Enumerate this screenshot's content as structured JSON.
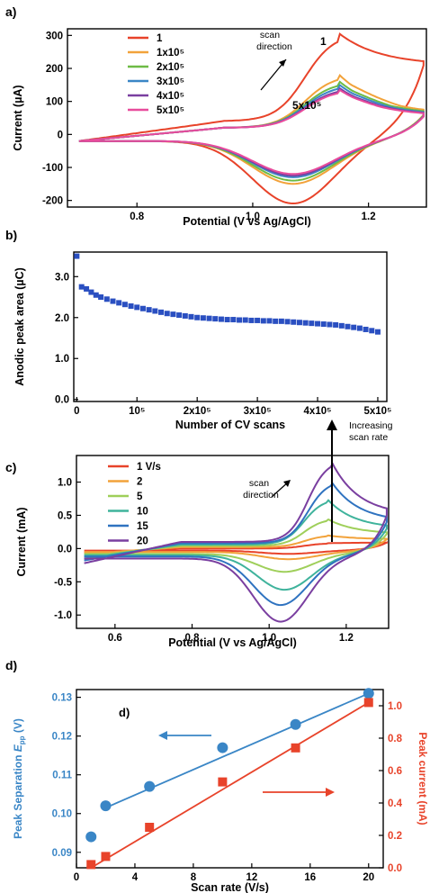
{
  "chart_data": [
    {
      "panel": "a)",
      "type": "line",
      "xlabel": "Potential (V vs Ag/AgCl)",
      "ylabel": "Current (µA)",
      "xlim": [
        0.68,
        1.3
      ],
      "ylim": [
        -220,
        320
      ],
      "xticks": [
        "0.8",
        "1.0",
        "1.2"
      ],
      "xtick_values": [
        0.8,
        1.0,
        1.2
      ],
      "yticks": [
        "-200",
        "-100",
        "0",
        "100",
        "200",
        "300"
      ],
      "ytick_values": [
        -200,
        -100,
        0,
        100,
        200,
        300
      ],
      "legend": {
        "placement": "top-left",
        "entries": [
          "1",
          "1x10⁵",
          "2x10⁵",
          "3x10⁵",
          "4x10⁵",
          "5x10⁵"
        ]
      },
      "annotations": {
        "scan_direction": [
          "scan",
          "direction"
        ],
        "first_scan": "1",
        "last_scan": "5x10⁵"
      },
      "series": [
        {
          "name": "1",
          "color": "#e8432a",
          "anodic_peak": [
            1.15,
            305
          ],
          "cathodic_peak": [
            1.07,
            -210
          ],
          "switch_current": 220,
          "start_current": -20,
          "baseline_forward": 40,
          "baseline_reverse": -20,
          "tail": 210
        },
        {
          "name": "1x10⁵",
          "color": "#f2a23a",
          "anodic_peak": [
            1.15,
            180
          ],
          "cathodic_peak": [
            1.07,
            -150
          ],
          "switch_current": 55,
          "start_current": -20,
          "baseline_forward": 20,
          "baseline_reverse": -20,
          "tail": 60
        },
        {
          "name": "2x10⁵",
          "color": "#6dbb45",
          "anodic_peak": [
            1.15,
            160
          ],
          "cathodic_peak": [
            1.07,
            -140
          ],
          "switch_current": 55,
          "start_current": -20,
          "baseline_forward": 20,
          "baseline_reverse": -20,
          "tail": 58
        },
        {
          "name": "3x10⁵",
          "color": "#3a86c6",
          "anodic_peak": [
            1.15,
            150
          ],
          "cathodic_peak": [
            1.07,
            -130
          ],
          "switch_current": 55,
          "start_current": -20,
          "baseline_forward": 20,
          "baseline_reverse": -20,
          "tail": 56
        },
        {
          "name": "4x10⁵",
          "color": "#7a3fa0",
          "anodic_peak": [
            1.15,
            140
          ],
          "cathodic_peak": [
            1.07,
            -125
          ],
          "switch_current": 55,
          "start_current": -20,
          "baseline_forward": 20,
          "baseline_reverse": -20,
          "tail": 55
        },
        {
          "name": "5x10⁵",
          "color": "#e84c9c",
          "anodic_peak": [
            1.15,
            135
          ],
          "cathodic_peak": [
            1.07,
            -120
          ],
          "switch_current": 55,
          "start_current": -20,
          "baseline_forward": 20,
          "baseline_reverse": -20,
          "tail": 54
        }
      ]
    },
    {
      "panel": "b)",
      "type": "scatter",
      "xlabel": "Number of CV scans",
      "ylabel": "Anodic peak area (µC)",
      "xlim": [
        -5000,
        515000
      ],
      "ylim": [
        -0.05,
        3.6
      ],
      "xticks": [
        "0",
        "10⁵",
        "2x10⁵",
        "3x10⁵",
        "4x10⁵",
        "5x10⁵"
      ],
      "xtick_values": [
        0,
        100000,
        200000,
        300000,
        400000,
        500000
      ],
      "yticks": [
        "0.0",
        "1.0",
        "2.0",
        "3.0"
      ],
      "ytick_values": [
        0,
        1,
        2,
        3
      ],
      "color": "#2a4fc1",
      "x": [
        0,
        8000,
        16000,
        24000,
        32000,
        40000,
        50000,
        60000,
        70000,
        80000,
        90000,
        100000,
        110000,
        120000,
        130000,
        140000,
        150000,
        160000,
        170000,
        180000,
        190000,
        200000,
        210000,
        220000,
        230000,
        240000,
        250000,
        260000,
        270000,
        280000,
        290000,
        300000,
        310000,
        320000,
        330000,
        340000,
        350000,
        360000,
        370000,
        380000,
        390000,
        400000,
        410000,
        420000,
        430000,
        440000,
        450000,
        460000,
        470000,
        480000,
        490000,
        500000
      ],
      "y": [
        3.5,
        2.75,
        2.7,
        2.62,
        2.55,
        2.5,
        2.45,
        2.4,
        2.36,
        2.32,
        2.28,
        2.25,
        2.22,
        2.19,
        2.16,
        2.13,
        2.1,
        2.08,
        2.06,
        2.04,
        2.02,
        2.0,
        1.99,
        1.98,
        1.97,
        1.96,
        1.95,
        1.95,
        1.94,
        1.94,
        1.93,
        1.93,
        1.92,
        1.92,
        1.91,
        1.91,
        1.9,
        1.89,
        1.88,
        1.87,
        1.86,
        1.85,
        1.84,
        1.83,
        1.82,
        1.8,
        1.78,
        1.76,
        1.74,
        1.71,
        1.68,
        1.65
      ]
    },
    {
      "panel": "c)",
      "type": "line",
      "xlabel": "Potential (V vs Ag/AgCl)",
      "ylabel": "Current (mA)",
      "xlim": [
        0.5,
        1.31
      ],
      "ylim": [
        -1.2,
        1.4
      ],
      "xticks": [
        "0.6",
        "0.8",
        "1.0",
        "1.2"
      ],
      "xtick_values": [
        0.6,
        0.8,
        1.0,
        1.2
      ],
      "yticks": [
        "-1.0",
        "-0.5",
        "0.0",
        "0.5",
        "1.0"
      ],
      "ytick_values": [
        -1.0,
        -0.5,
        0.0,
        0.5,
        1.0
      ],
      "legend": {
        "placement": "top-left",
        "entries": [
          "1 V/s",
          "2",
          "5",
          "10",
          "15",
          "20"
        ]
      },
      "annotations": {
        "scan_direction": [
          "scan",
          "direction"
        ],
        "increasing": [
          "Increasing",
          "scan rate"
        ]
      },
      "series": [
        {
          "name": "1 V/s",
          "color": "#e8432a",
          "anodic_peak": [
            1.15,
            0.08
          ],
          "cathodic_peak": [
            1.05,
            -0.08
          ],
          "baseline_forward": 0.0,
          "baseline_reverse": -0.03,
          "tail": 0.09,
          "start_current": -0.06
        },
        {
          "name": "2",
          "color": "#f2a23a",
          "anodic_peak": [
            1.15,
            0.2
          ],
          "cathodic_peak": [
            1.05,
            -0.16
          ],
          "baseline_forward": 0.02,
          "baseline_reverse": -0.05,
          "tail": 0.14,
          "start_current": -0.08
        },
        {
          "name": "5",
          "color": "#9fcf5a",
          "anodic_peak": [
            1.15,
            0.45
          ],
          "cathodic_peak": [
            1.04,
            -0.35
          ],
          "baseline_forward": 0.04,
          "baseline_reverse": -0.08,
          "tail": 0.22,
          "start_current": -0.12
        },
        {
          "name": "10",
          "color": "#3fb39c",
          "anodic_peak": [
            1.15,
            0.75
          ],
          "cathodic_peak": [
            1.04,
            -0.62
          ],
          "baseline_forward": 0.06,
          "baseline_reverse": -0.1,
          "tail": 0.3,
          "start_current": -0.15
        },
        {
          "name": "15",
          "color": "#2f73c0",
          "anodic_peak": [
            1.16,
            1.02
          ],
          "cathodic_peak": [
            1.03,
            -0.85
          ],
          "baseline_forward": 0.08,
          "baseline_reverse": -0.12,
          "tail": 0.4,
          "start_current": -0.18
        },
        {
          "name": "20",
          "color": "#7a3fa0",
          "anodic_peak": [
            1.16,
            1.33
          ],
          "cathodic_peak": [
            1.03,
            -1.1
          ],
          "baseline_forward": 0.1,
          "baseline_reverse": -0.15,
          "tail": 0.5,
          "start_current": -0.22
        }
      ]
    },
    {
      "panel": "d)",
      "inner_label": "d)",
      "type": "scatter",
      "xlabel": "Scan rate (V/s)",
      "ylabel_left": "Peak Separation E_pp (V)",
      "ylabel_left_parts": [
        "Peak Separation ",
        "E",
        "pp",
        " (V)"
      ],
      "ylabel_right": "Peak current (mA)",
      "xlim": [
        0,
        21
      ],
      "ylim_left": [
        0.086,
        0.132
      ],
      "ylim_right": [
        0,
        1.1
      ],
      "xticks": [
        "0",
        "4",
        "8",
        "12",
        "16",
        "20"
      ],
      "xtick_values": [
        0,
        4,
        8,
        12,
        16,
        20
      ],
      "yticks_left": [
        "0.09",
        "0.10",
        "0.11",
        "0.12",
        "0.13"
      ],
      "ytick_values_left": [
        0.09,
        0.1,
        0.11,
        0.12,
        0.13
      ],
      "yticks_right": [
        "0.0",
        "0.2",
        "0.4",
        "0.6",
        "0.8",
        "1.0"
      ],
      "ytick_values_right": [
        0,
        0.2,
        0.4,
        0.6,
        0.8,
        1.0
      ],
      "left_color": "#3a86c6",
      "right_color": "#e8432a",
      "series": [
        {
          "name": "Peak separation",
          "axis": "left",
          "marker": "circle",
          "color": "#3a86c6",
          "x": [
            1,
            2,
            5,
            10,
            15,
            20
          ],
          "values": [
            0.094,
            0.102,
            0.107,
            0.117,
            0.123,
            0.131
          ],
          "fit": [
            [
              2,
              0.1015
            ],
            [
              20,
              0.131
            ]
          ]
        },
        {
          "name": "Peak current",
          "axis": "right",
          "marker": "square",
          "color": "#e8432a",
          "x": [
            1,
            2,
            5,
            10,
            15,
            20
          ],
          "values": [
            0.02,
            0.07,
            0.25,
            0.53,
            0.74,
            1.02
          ],
          "fit": [
            [
              1,
              0.0
            ],
            [
              20,
              1.02
            ]
          ]
        }
      ]
    }
  ]
}
